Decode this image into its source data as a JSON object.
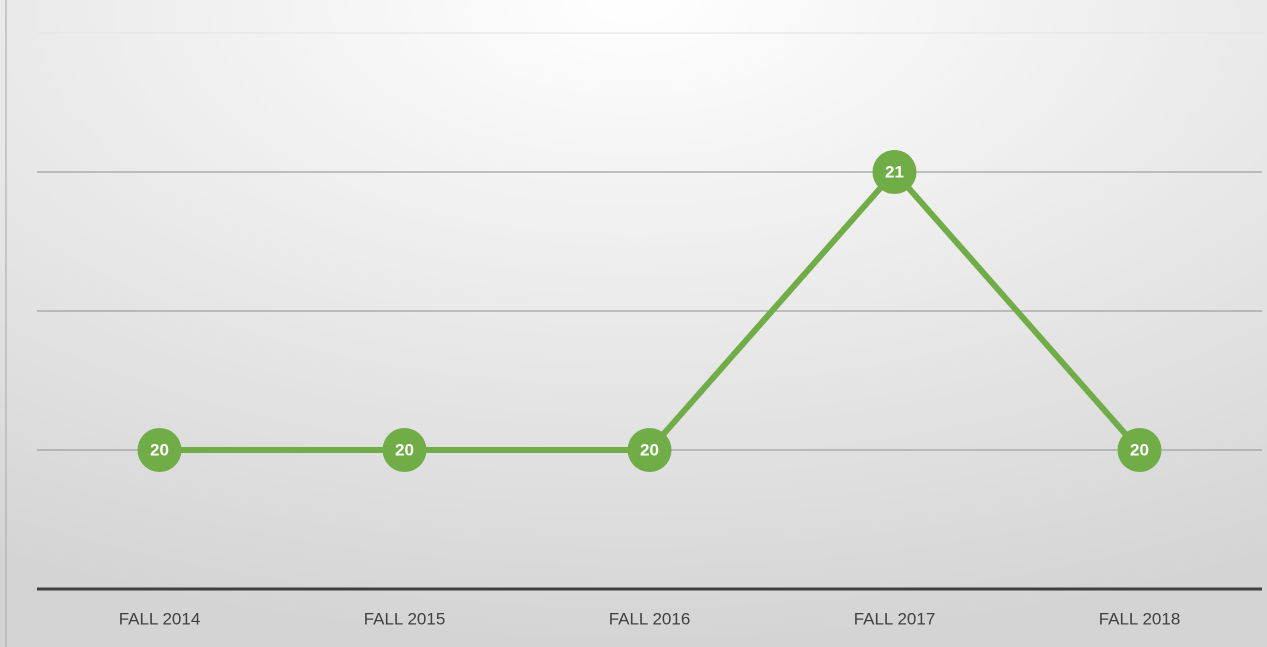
{
  "chart_data": {
    "type": "line",
    "categories": [
      "FALL 2014",
      "FALL 2015",
      "FALL 2016",
      "FALL 2017",
      "FALL 2018"
    ],
    "series": [
      {
        "name": null,
        "color": "#70ad47",
        "values": [
          20,
          20,
          20,
          21,
          20
        ]
      }
    ],
    "ylim": [
      19.5,
      21.5
    ],
    "yticks": [
      20,
      20.5,
      21,
      21.5
    ],
    "grid": true
  }
}
